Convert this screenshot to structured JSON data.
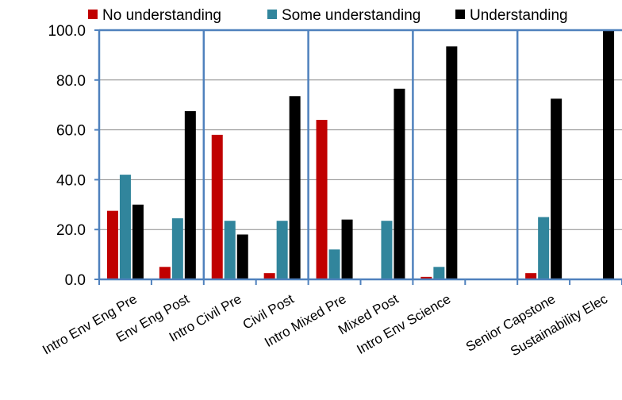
{
  "chart_data": {
    "type": "bar",
    "categories": [
      "Intro Env Eng Pre",
      "Env Eng Post",
      "Intro Civil Pre",
      "Civil Post",
      "Intro Mixed Pre",
      "Mixed Post",
      "Intro Env Science",
      "",
      "Senior Capstone",
      "Sustainability Elec"
    ],
    "series": [
      {
        "name": "No understanding",
        "color": "#c00000",
        "values": [
          27.5,
          5.0,
          58.0,
          2.5,
          64.0,
          null,
          1.0,
          null,
          2.5,
          null
        ]
      },
      {
        "name": "Some understanding",
        "color": "#31859c",
        "values": [
          42.0,
          24.5,
          23.5,
          23.5,
          12.0,
          23.5,
          5.0,
          null,
          25.0,
          null
        ]
      },
      {
        "name": "Understanding",
        "color": "#000000",
        "values": [
          30.0,
          67.5,
          18.0,
          73.5,
          24.0,
          76.5,
          93.5,
          null,
          72.5,
          100.0
        ]
      }
    ],
    "ylim": [
      0,
      100
    ],
    "yticks": [
      "0.0",
      "20.0",
      "40.0",
      "60.0",
      "80.0",
      "100.0"
    ],
    "grid": "horizontal",
    "separators_after_category": [
      1,
      3,
      5,
      7
    ],
    "legend_placement": "top",
    "xlabel": "",
    "ylabel": "",
    "title": ""
  }
}
